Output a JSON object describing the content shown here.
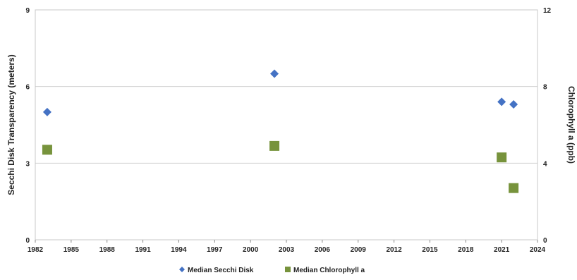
{
  "chart_data": {
    "type": "scatter",
    "title": "",
    "xlabel": "",
    "ylabel": "Secchi Disk Transparency (meters)",
    "y2label": "Chlorophyll a (ppb)",
    "xlim": [
      1982,
      2024
    ],
    "ylim": [
      0,
      9
    ],
    "y2lim": [
      0,
      12
    ],
    "x_ticks": [
      "1982",
      "1985",
      "1988",
      "1991",
      "1994",
      "1997",
      "2000",
      "2003",
      "2006",
      "2009",
      "2012",
      "2015",
      "2018",
      "2021",
      "2024"
    ],
    "y_ticks": [
      "0",
      "3",
      "6",
      "9"
    ],
    "y2_ticks": [
      "0",
      "4",
      "8",
      "12"
    ],
    "grid": "horizontal",
    "legend_position": "bottom",
    "series": [
      {
        "name": "Median Secchi Disk",
        "axis": "left",
        "marker": "diamond",
        "color": "#4472C4",
        "points": [
          {
            "x": 1983,
            "y": 5.0
          },
          {
            "x": 2002,
            "y": 6.5
          },
          {
            "x": 2021,
            "y": 5.4
          },
          {
            "x": 2022,
            "y": 5.3
          }
        ]
      },
      {
        "name": "Median Chlorophyll a",
        "axis": "right",
        "marker": "square",
        "color": "#77933C",
        "points": [
          {
            "x": 1983,
            "y": 4.7
          },
          {
            "x": 2002,
            "y": 4.9
          },
          {
            "x": 2021,
            "y": 4.3
          },
          {
            "x": 2022,
            "y": 2.7
          }
        ]
      }
    ]
  }
}
